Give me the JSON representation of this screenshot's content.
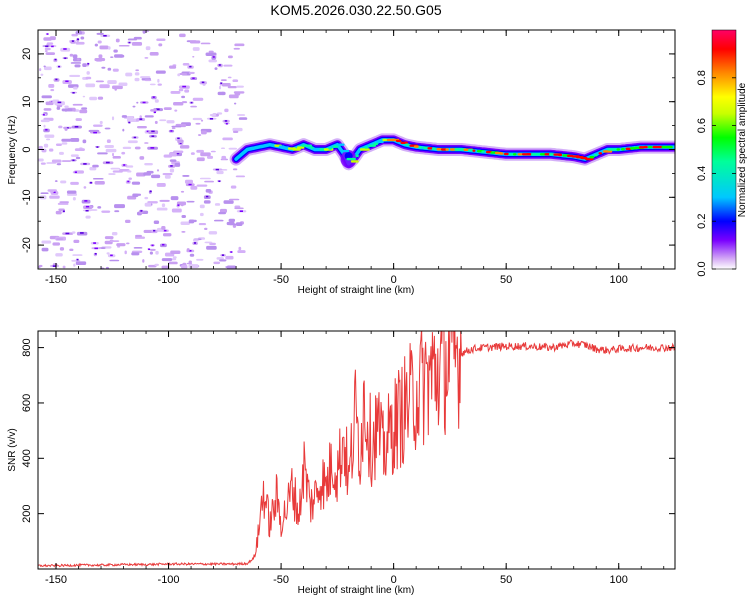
{
  "figure_title": "KOM5.2026.030.22.50.G05",
  "colors": {
    "snr_line": "#e83a3a",
    "axes": "#000000",
    "background": "#ffffff"
  },
  "chart_data": [
    {
      "type": "heatmap",
      "title": "KOM5.2026.030.22.50.G05",
      "xlabel": "Height of straight line (km)",
      "ylabel": "Frequency (Hz)",
      "xlim": [
        -158,
        125
      ],
      "ylim": [
        -25,
        25
      ],
      "x_ticks": [
        "-150",
        "-100",
        "-50",
        "0",
        "50",
        "100"
      ],
      "y_ticks": [
        "-20",
        "-10",
        "0",
        "10",
        "20"
      ],
      "noise_region_x": [
        -158,
        -68
      ],
      "signal_track": {
        "x": [
          -70,
          -65,
          -55,
          -45,
          -40,
          -35,
          -30,
          -25,
          -22,
          -20,
          -18,
          -15,
          -10,
          -5,
          0,
          5,
          10,
          20,
          30,
          40,
          50,
          60,
          70,
          80,
          85,
          90,
          95,
          100,
          110,
          125
        ],
        "freq": [
          -2,
          0,
          1,
          0,
          1,
          0,
          0,
          1,
          -1,
          -3,
          -2,
          0,
          1,
          2,
          2,
          1,
          0.5,
          0,
          0,
          -0.5,
          -1,
          -1,
          -1,
          -1.5,
          -2,
          -1,
          0,
          0,
          0.5,
          0.5
        ]
      },
      "colorbar": {
        "label": "Normalized spectral amplitude",
        "ticks": [
          "0.0",
          "0.2",
          "0.4",
          "0.6",
          "0.8"
        ],
        "range": [
          0,
          1
        ]
      }
    },
    {
      "type": "line",
      "xlabel": "Height of straight line (km)",
      "ylabel": "SNR (v/v)",
      "xlim": [
        -158,
        125
      ],
      "ylim": [
        0,
        860
      ],
      "x_ticks": [
        "-150",
        "-100",
        "-50",
        "0",
        "50",
        "100"
      ],
      "y_ticks": [
        "200",
        "400",
        "600",
        "800"
      ],
      "series": [
        {
          "name": "SNR",
          "x": [
            -158,
            -150,
            -140,
            -130,
            -120,
            -110,
            -100,
            -90,
            -80,
            -70,
            -65,
            -62,
            -60,
            -58,
            -55,
            -52,
            -50,
            -47,
            -45,
            -42,
            -40,
            -37,
            -35,
            -32,
            -30,
            -27,
            -25,
            -22,
            -20,
            -17,
            -15,
            -13,
            -10,
            -7,
            -5,
            -2,
            0,
            5,
            10,
            15,
            20,
            25,
            30,
            35,
            40,
            50,
            60,
            70,
            80,
            85,
            90,
            95,
            100,
            110,
            125
          ],
          "y": [
            12,
            12,
            14,
            14,
            16,
            16,
            18,
            18,
            18,
            18,
            20,
            40,
            130,
            290,
            160,
            260,
            170,
            230,
            300,
            190,
            380,
            230,
            260,
            330,
            290,
            400,
            350,
            480,
            310,
            560,
            430,
            620,
            450,
            520,
            420,
            480,
            520,
            580,
            640,
            690,
            720,
            760,
            780,
            795,
            800,
            805,
            805,
            800,
            815,
            810,
            795,
            790,
            795,
            800,
            800
          ]
        }
      ]
    }
  ]
}
